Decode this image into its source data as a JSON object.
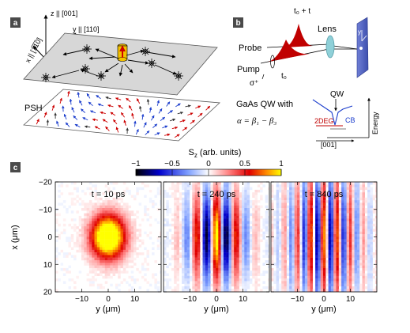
{
  "panels": {
    "a": {
      "letter": "a",
      "axes": {
        "z": "z || [001]",
        "y": "y || [110]",
        "x": "x || [1̅1̅0]"
      },
      "psh_label": "PSH"
    },
    "b": {
      "letter": "b",
      "probe_label": "Probe",
      "pump_label": "Pump",
      "t0_dt_label": "t₀ + t",
      "t0_label": "t₀",
      "sigma_label": "σ⁺",
      "lens_label": "Lens",
      "screen_axes": {
        "y": "y",
        "x": "x"
      },
      "qw_title": "GaAs QW with",
      "formula": "α = β₁ − β₃",
      "qw_label": "QW",
      "twodeg_label": "2DEG",
      "cb_label": "CB",
      "energy_label": "Energy",
      "direction_label": "[001]"
    },
    "c": {
      "letter": "c",
      "colorbar": {
        "title": "S",
        "title_sub": "z",
        "title_suffix": " (arb. units)",
        "ticks": [
          "−1",
          "−0.5",
          "0",
          "0.5",
          "1"
        ],
        "range": [
          -1,
          1
        ],
        "colors": [
          "#000000",
          "#0000cc",
          "#7fa0ff",
          "#ffffff",
          "#ff8080",
          "#e00000",
          "#ff8c00",
          "#ffff00"
        ]
      },
      "ylabel": "x (μm)",
      "yticks": [
        "−20",
        "−10",
        "0",
        "10",
        "20"
      ],
      "xticks": [
        "−10",
        "0",
        "10"
      ],
      "xlabel": "y (μm)",
      "maps": [
        {
          "time": "t = 10 ps"
        },
        {
          "time": "t = 240 ps"
        },
        {
          "time": "t = 840 ps"
        }
      ]
    }
  }
}
